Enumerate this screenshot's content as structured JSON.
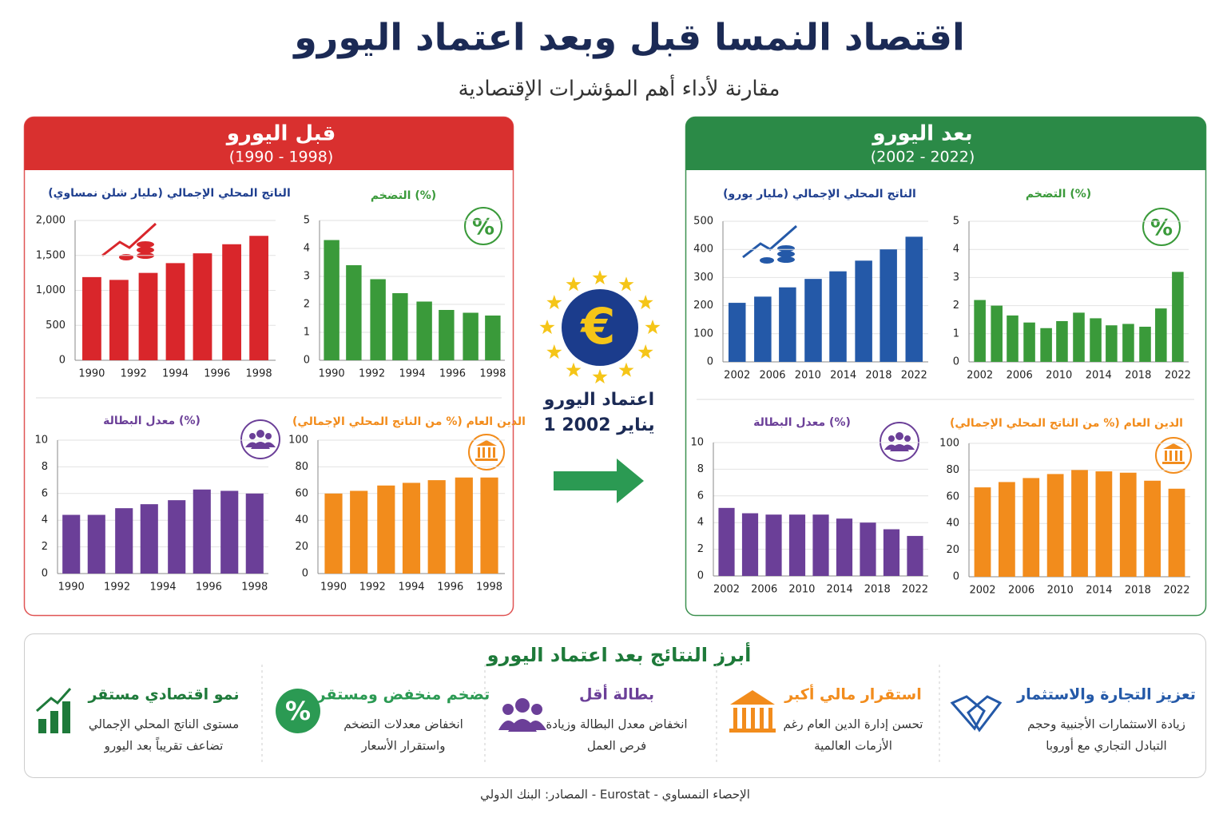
{
  "header": {
    "title": "اقتصاد النمسا قبل وبعد اعتماد اليورو",
    "subtitle": "مقارنة لأداء أهم المؤشرات الإقتصادية"
  },
  "panels": [
    {
      "title": "قبل اليورو",
      "period": "(1990 - 1998)"
    },
    {
      "title": "بعد اليورو",
      "period": "(2002 - 2022)"
    }
  ],
  "icons": {
    "percent": "%",
    "euro": "€"
  },
  "center": {
    "label": "اعتماد اليورو",
    "date": "1 يناير 2002"
  },
  "chart_data": [
    {
      "type": "bar",
      "title": "الناتج المحلي الإجمالي (مليار شلن نمساوي)",
      "color": "#d9262b",
      "title_color": "#1f3f8f",
      "x": [
        1990,
        1991.3,
        1992.7,
        1994,
        1995.3,
        1996.7,
        1998
      ],
      "values": [
        1190,
        1150,
        1250,
        1390,
        1530,
        1660,
        1780
      ],
      "xlim": [
        1989.2,
        1998.8
      ],
      "xticks": [
        1990,
        1992,
        1994,
        1996,
        1998
      ],
      "ylim": [
        0,
        2000
      ],
      "yticks": [
        0,
        500,
        {
          "value": 1000,
          "label": "1,000"
        },
        {
          "value": 1500,
          "label": "1,500"
        },
        {
          "value": 2000,
          "label": "2,000"
        }
      ],
      "grid": true
    },
    {
      "type": "bar",
      "title": "التضخم (%)",
      "color": "#3a9a3a",
      "title_color": "#3a9a3a",
      "x": [
        1990,
        1991.1,
        1992.3,
        1993.4,
        1994.6,
        1995.7,
        1996.9,
        1998
      ],
      "values": [
        4.3,
        3.4,
        2.9,
        2.4,
        2.1,
        1.8,
        1.7,
        1.6
      ],
      "xlim": [
        1989.4,
        1998.6
      ],
      "xticks": [
        1990,
        1992,
        1994,
        1996,
        1998
      ],
      "ylim": [
        0,
        5
      ],
      "yticks": [
        0,
        1,
        2,
        3,
        4,
        5
      ],
      "grid": true
    },
    {
      "type": "bar",
      "title": "معدل البطالة (%)",
      "color": "#6b3f98",
      "title_color": "#6b3f98",
      "x": [
        1990,
        1991.1,
        1992.3,
        1993.4,
        1994.6,
        1995.7,
        1996.9,
        1998
      ],
      "values": [
        4.4,
        4.4,
        4.9,
        5.2,
        5.5,
        6.3,
        6.2,
        6.0
      ],
      "xlim": [
        1989.4,
        1998.6
      ],
      "xticks": [
        1990,
        1992,
        1994,
        1996,
        1998
      ],
      "ylim": [
        0,
        10
      ],
      "yticks": [
        0,
        2,
        4,
        6,
        8,
        10
      ],
      "grid": true
    },
    {
      "type": "bar",
      "title": "الدين العام (% من الناتج المحلي الإجمالي)",
      "color": "#f28c1c",
      "title_color": "#f28c1c",
      "x": [
        1990,
        1991.3,
        1992.7,
        1994,
        1995.3,
        1996.7,
        1998
      ],
      "values": [
        60,
        62,
        66,
        68,
        70,
        72,
        72
      ],
      "xlim": [
        1989.2,
        1998.8
      ],
      "xticks": [
        1990,
        1992,
        1994,
        1996,
        1998
      ],
      "ylim": [
        0,
        100
      ],
      "yticks": [
        0,
        20,
        40,
        60,
        80,
        100
      ],
      "grid": true
    },
    {
      "type": "bar",
      "title": "الناتج المحلي الإجمالي (مليار يورو)",
      "color": "#2459a8",
      "title_color": "#1f3f8f",
      "x": [
        2002,
        2004.9,
        2007.7,
        2010.6,
        2013.4,
        2016.3,
        2019.1,
        2022
      ],
      "values": [
        210,
        232,
        265,
        295,
        322,
        360,
        400,
        445
      ],
      "xlim": [
        2000.4,
        2023.6
      ],
      "xticks": [
        2002,
        2006,
        2010,
        2014,
        2018,
        2022
      ],
      "ylim": [
        0,
        500
      ],
      "yticks": [
        0,
        100,
        200,
        300,
        400,
        500
      ],
      "grid": true
    },
    {
      "type": "bar",
      "title": "التضخم (%)",
      "color": "#3a9a3a",
      "title_color": "#3a9a3a",
      "x": [
        2002,
        2003.7,
        2005.3,
        2007,
        2008.7,
        2010.3,
        2012,
        2013.7,
        2015.3,
        2017,
        2018.7,
        2020.3,
        2022
      ],
      "values": [
        2.2,
        2.0,
        1.65,
        1.4,
        1.2,
        1.45,
        1.75,
        1.55,
        1.3,
        1.35,
        1.25,
        1.9,
        3.2
      ],
      "xlim": [
        2000.9,
        2023.1
      ],
      "xticks": [
        2002,
        2006,
        2010,
        2014,
        2018,
        2022
      ],
      "ylim": [
        0,
        5
      ],
      "yticks": [
        0,
        1,
        2,
        3,
        4,
        5
      ],
      "grid": true
    },
    {
      "type": "bar",
      "title": "معدل البطالة (%)",
      "color": "#6b3f98",
      "title_color": "#6b3f98",
      "x": [
        2002,
        2004.5,
        2007,
        2009.5,
        2012,
        2014.5,
        2017,
        2019.5,
        2022
      ],
      "values": [
        5.1,
        4.7,
        4.6,
        4.6,
        4.6,
        4.3,
        4.0,
        3.5,
        3.0
      ],
      "xlim": [
        2000.6,
        2023.4
      ],
      "xticks": [
        2002,
        2006,
        2010,
        2014,
        2018,
        2022
      ],
      "ylim": [
        0,
        10
      ],
      "yticks": [
        0,
        2,
        4,
        6,
        8,
        10
      ],
      "grid": true
    },
    {
      "type": "bar",
      "title": "الدين العام (% من الناتج المحلي الإجمالي)",
      "color": "#f28c1c",
      "title_color": "#f28c1c",
      "x": [
        2002,
        2004.5,
        2007,
        2009.5,
        2012,
        2014.5,
        2017,
        2019.5,
        2022
      ],
      "values": [
        67,
        71,
        74,
        77,
        80,
        79,
        78,
        72,
        66
      ],
      "xlim": [
        2000.6,
        2023.4
      ],
      "xticks": [
        2002,
        2006,
        2010,
        2014,
        2018,
        2022
      ],
      "ylim": [
        0,
        100
      ],
      "yticks": [
        0,
        20,
        40,
        60,
        80,
        100
      ],
      "grid": true
    }
  ],
  "results": {
    "title": "أبرز النتائج بعد اعتماد اليورو",
    "items": [
      {
        "title": "تعزيز التجارة والاستثمار",
        "lines": [
          "زيادة الاستثمارات الأجنبية وحجم",
          "التبادل التجاري مع أوروبا"
        ]
      },
      {
        "title": "استقرار مالي أكبر",
        "lines": [
          "تحسن إدارة الدين العام رغم",
          "الأزمات العالمية"
        ]
      },
      {
        "title": "بطالة أقل",
        "lines": [
          "انخفاض معدل البطالة وزيادة",
          "فرص العمل"
        ]
      },
      {
        "title": "تضخم منخفض ومستقر",
        "lines": [
          "انخفاض معدلات التضخم",
          "واستقرار الأسعار"
        ]
      },
      {
        "title": "نمو اقتصادي مستقر",
        "lines": [
          "مستوى الناتج المحلي الإجمالي",
          "تضاعف تقريباً بعد اليورو"
        ]
      }
    ]
  },
  "source": "المصادر: البنك الدولي - Eurostat - الإحصاء النمساوي"
}
